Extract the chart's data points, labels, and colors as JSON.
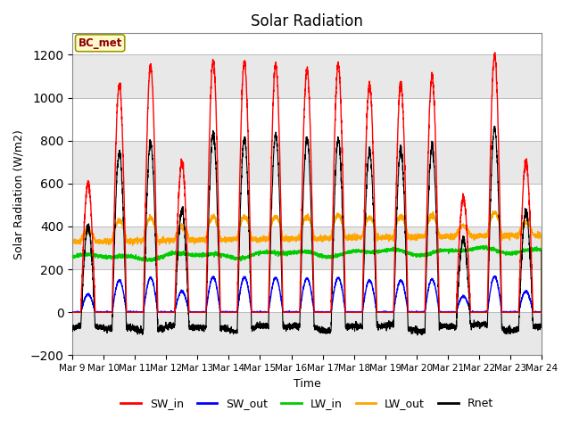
{
  "title": "Solar Radiation",
  "ylabel": "Solar Radiation (W/m2)",
  "xlabel": "Time",
  "ylim": [
    -200,
    1300
  ],
  "annotation_text": "BC_met",
  "annotation_color": "#8B0000",
  "annotation_bg": "#FFFACD",
  "annotation_edge": "#999900",
  "x_tick_labels": [
    "Mar 9",
    "Mar 10",
    "Mar 11",
    "Mar 12",
    "Mar 13",
    "Mar 14",
    "Mar 15",
    "Mar 16",
    "Mar 17",
    "Mar 18",
    "Mar 19",
    "Mar 20",
    "Mar 21",
    "Mar 22",
    "Mar 23",
    "Mar 24"
  ],
  "colors": {
    "SW_in": "#FF0000",
    "SW_out": "#0000FF",
    "LW_in": "#00CC00",
    "LW_out": "#FFA500",
    "Rnet": "#000000"
  },
  "n_days": 15,
  "ppd": 288,
  "sw_in_peaks": [
    600,
    1060,
    1150,
    700,
    1170,
    1170,
    1150,
    1130,
    1150,
    1060,
    1060,
    1100,
    530,
    1200,
    700
  ],
  "figsize": [
    6.4,
    4.8
  ],
  "dpi": 100
}
